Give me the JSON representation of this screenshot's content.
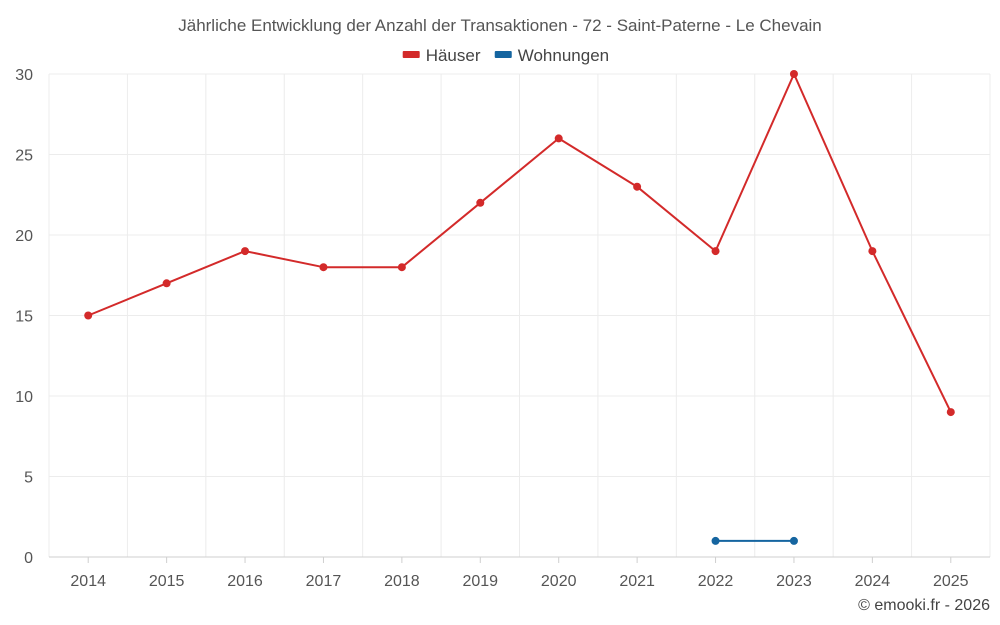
{
  "chart_data": {
    "type": "line",
    "title": "Jährliche Entwicklung der Anzahl der Transaktionen - 72 - Saint-Paterne - Le Chevain",
    "categories": [
      "2014",
      "2015",
      "2016",
      "2017",
      "2018",
      "2019",
      "2020",
      "2021",
      "2022",
      "2023",
      "2024",
      "2025"
    ],
    "ylim": [
      0,
      30
    ],
    "yticks": [
      0,
      5,
      10,
      15,
      20,
      25,
      30
    ],
    "grid": true,
    "legend_position": "top-center",
    "series": [
      {
        "name": "Häuser",
        "color": "#d32a2a",
        "values": [
          15,
          17,
          19,
          18,
          18,
          22,
          26,
          23,
          19,
          30,
          19,
          9
        ]
      },
      {
        "name": "Wohnungen",
        "color": "#1565a0",
        "values": [
          null,
          null,
          null,
          null,
          null,
          null,
          null,
          null,
          1,
          1,
          null,
          null
        ]
      }
    ],
    "credit": "© emooki.fr - 2026"
  }
}
